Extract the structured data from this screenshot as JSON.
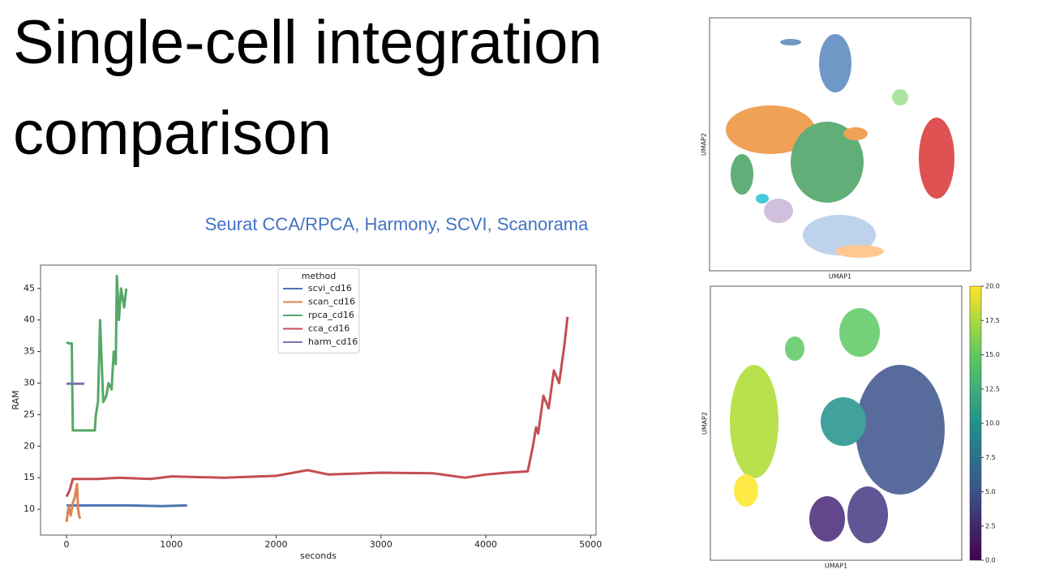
{
  "title_line1": "Single-cell integration",
  "title_line2": "comparison",
  "subtitle": "Seurat CCA/RPCA, Harmony, SCVI, Scanorama",
  "chart_data": [
    {
      "type": "line",
      "xlabel": "seconds",
      "ylabel": "RAM",
      "legend_title": "method",
      "legend": "upper center",
      "xlim": [
        -248,
        5052
      ],
      "xticks": [
        0,
        1000,
        2000,
        3000,
        4000,
        5000
      ],
      "ylim": [
        5.9,
        48.7
      ],
      "yticks": [
        10,
        15,
        20,
        25,
        30,
        35,
        40,
        45
      ],
      "series": [
        {
          "name": "scvi_cd16",
          "color": "#4c72b0",
          "x": [
            0,
            300,
            600,
            900,
            1150
          ],
          "values": [
            10.6,
            10.6,
            10.6,
            10.5,
            10.6
          ]
        },
        {
          "name": "scan_cd16",
          "color": "#dd8452",
          "x": [
            0,
            20,
            40,
            60,
            80,
            100,
            110,
            120,
            130
          ],
          "values": [
            8,
            10.5,
            9,
            11,
            12,
            14,
            10,
            9,
            8.5
          ]
        },
        {
          "name": "rpca_cd16",
          "color": "#55a868",
          "x": [
            0,
            20,
            50,
            60,
            100,
            200,
            270,
            280,
            300,
            320,
            350,
            380,
            400,
            430,
            450,
            470,
            480,
            500,
            520,
            550,
            570
          ],
          "values": [
            36.5,
            36.3,
            36.3,
            22.5,
            22.5,
            22.5,
            22.5,
            25,
            27,
            40,
            27,
            28,
            30,
            29,
            35,
            33,
            47,
            40,
            45,
            42,
            45
          ]
        },
        {
          "name": "cca_cd16",
          "color": "#c44e52",
          "x": [
            0,
            30,
            60,
            300,
            500,
            800,
            1000,
            1500,
            2000,
            2300,
            2500,
            3000,
            3500,
            3800,
            4000,
            4200,
            4400,
            4450,
            4480,
            4500,
            4550,
            4600,
            4650,
            4700,
            4750,
            4780
          ],
          "values": [
            12,
            13,
            14.8,
            14.8,
            15,
            14.8,
            15.2,
            15,
            15.3,
            16.2,
            15.5,
            15.8,
            15.7,
            15,
            15.5,
            15.8,
            16,
            20,
            23,
            22,
            28,
            26,
            32,
            30,
            36,
            40.5
          ]
        },
        {
          "name": "harm_cd16",
          "color": "#8172b3",
          "x": [
            0,
            170
          ],
          "values": [
            29.9,
            29.9
          ]
        }
      ]
    },
    {
      "type": "scatter",
      "xlabel": "UMAP1",
      "ylabel": "UMAP2"
    },
    {
      "type": "scatter",
      "xlabel": "UMAP1",
      "ylabel": "UMAP2",
      "colorbar_lim": [
        0,
        20
      ],
      "colorbar_ticks": [
        {
          "value": 0,
          "label": "0.0"
        },
        {
          "value": 2.5,
          "label": "2.5"
        },
        {
          "value": 5,
          "label": "5.0"
        },
        {
          "value": 7.5,
          "label": "7.5"
        },
        {
          "value": 10,
          "label": "10.0"
        },
        {
          "value": 12.5,
          "label": "12.5"
        },
        {
          "value": 15,
          "label": "15.0"
        },
        {
          "value": 17.5,
          "label": "17.5"
        },
        {
          "value": 20,
          "label": "20.0"
        }
      ]
    }
  ]
}
